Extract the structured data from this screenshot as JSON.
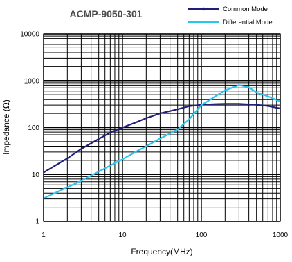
{
  "chart_data": {
    "type": "line",
    "title": "ACMP-9050-301",
    "xlabel": "Frequency(MHz)",
    "ylabel": "Impedance (Ω)",
    "x_scale": "log",
    "y_scale": "log",
    "xlim": [
      1,
      1000
    ],
    "ylim": [
      1,
      10000
    ],
    "x_ticks": [
      "1",
      "10",
      "100",
      "1000"
    ],
    "y_ticks": [
      "1",
      "10",
      "100",
      "1000",
      "10000"
    ],
    "grid": true,
    "legend_position": "top-right",
    "series": [
      {
        "name": "Common Mode",
        "color": "#1f1f7a",
        "marker": "dot",
        "x": [
          1,
          2,
          3,
          5,
          7,
          10,
          15,
          20,
          30,
          50,
          70,
          100,
          150,
          200,
          300,
          500,
          700,
          1000
        ],
        "y": [
          11,
          22,
          35,
          57,
          78,
          100,
          130,
          158,
          200,
          245,
          285,
          305,
          315,
          320,
          320,
          305,
          288,
          255
        ]
      },
      {
        "name": "Differential Mode",
        "color": "#29c5f0",
        "marker": "none",
        "x": [
          1,
          2,
          3,
          5,
          7,
          10,
          15,
          20,
          30,
          50,
          70,
          100,
          150,
          200,
          300,
          400,
          500,
          700,
          1000
        ],
        "y": [
          3.1,
          5.3,
          7.3,
          11.5,
          15.5,
          21,
          31,
          40,
          58,
          91,
          150,
          300,
          460,
          620,
          800,
          720,
          560,
          460,
          360
        ]
      }
    ]
  }
}
